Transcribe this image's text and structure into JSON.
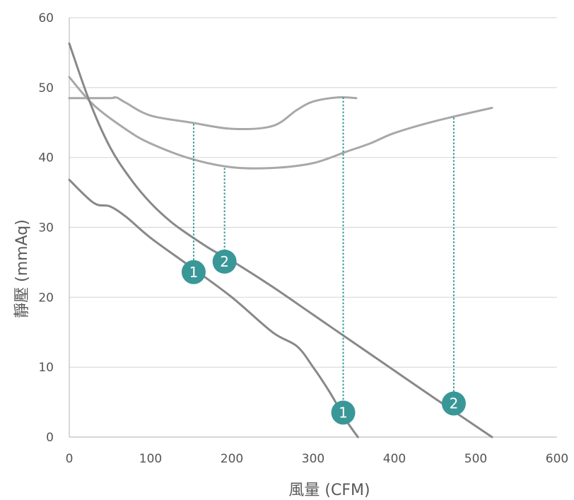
{
  "chart_data": {
    "type": "line",
    "title": "",
    "xlabel": "風量 (CFM)",
    "ylabel": "靜壓 (mmAq)",
    "xlim": [
      0,
      600
    ],
    "ylim": [
      0,
      60
    ],
    "x_ticks": [
      0,
      100,
      200,
      300,
      400,
      500,
      600
    ],
    "y_ticks": [
      0,
      10,
      20,
      30,
      40,
      50,
      60
    ],
    "x_tick_labels": [
      "0",
      "100",
      "200",
      "300",
      "400",
      "500",
      "600"
    ],
    "y_tick_labels": [
      "0",
      "10",
      "20",
      "30",
      "40",
      "50",
      "60"
    ],
    "grid": "horizontal",
    "legend": "none",
    "colors": {
      "system_curves": "#888888",
      "fan_curves": "#a8a8a8",
      "marker": "#3a9797",
      "guide_line": "#3a9797",
      "grid": "#d9d9d9"
    },
    "series": [
      {
        "x": [
          0,
          50,
          55,
          60,
          70,
          100,
          150,
          200,
          250,
          280,
          300,
          330,
          353
        ],
        "y": [
          48.5,
          48.5,
          48.6,
          48.5,
          47.8,
          46,
          45,
          44.1,
          44.5,
          46.8,
          48,
          48.6,
          48.5
        ],
        "color": "#a8a8a8"
      },
      {
        "x": [
          0,
          30,
          70,
          100,
          150,
          200,
          250,
          300,
          340,
          370,
          400,
          450,
          520
        ],
        "y": [
          51.5,
          47.5,
          44,
          42,
          39.8,
          38.6,
          38.5,
          39.2,
          40.8,
          42,
          43.5,
          45.2,
          47.1
        ],
        "color": "#a8a8a8"
      },
      {
        "x": [
          0,
          25,
          50,
          75,
          100,
          125,
          150,
          175,
          200,
          250,
          300,
          350,
          400,
          450,
          520
        ],
        "y": [
          56.3,
          48,
          41.5,
          37,
          33.5,
          30.8,
          28.7,
          26.8,
          25.2,
          21.5,
          17.5,
          13.5,
          9.5,
          5.5,
          0
        ],
        "color": "#888888"
      },
      {
        "x": [
          0,
          30,
          50,
          70,
          100,
          150,
          200,
          250,
          280,
          300,
          320,
          340,
          355
        ],
        "y": [
          36.8,
          33.5,
          33,
          31.5,
          28.5,
          24.3,
          20,
          15,
          13,
          10,
          6.5,
          2.5,
          0
        ],
        "color": "#888888"
      }
    ],
    "guide_lines": [
      {
        "x": 153,
        "y_top": 44.8,
        "y_bottom": 24
      },
      {
        "x": 191,
        "y_top": 38.5,
        "y_bottom": 25.5
      },
      {
        "x": 337,
        "y_top": 48.6,
        "y_bottom": 4
      },
      {
        "x": 473,
        "y_top": 45.7,
        "y_bottom": 5.3
      }
    ],
    "markers": [
      {
        "x": 153,
        "y": 23.6,
        "label": "1"
      },
      {
        "x": 191,
        "y": 25.1,
        "label": "2"
      },
      {
        "x": 337,
        "y": 3.5,
        "label": "1"
      },
      {
        "x": 473,
        "y": 4.8,
        "label": "2"
      }
    ]
  }
}
